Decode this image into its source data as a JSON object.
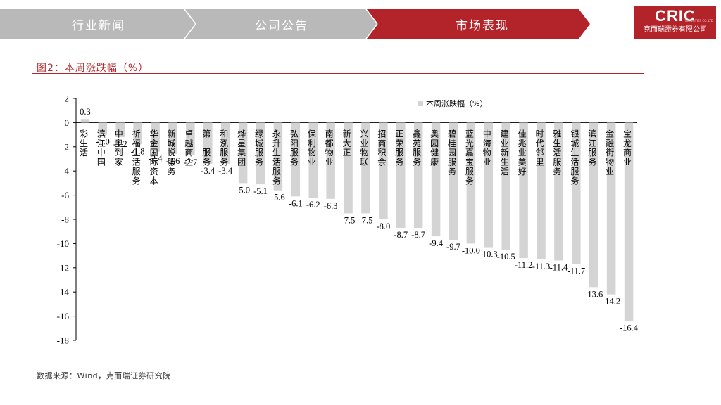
{
  "nav": {
    "tabs": [
      {
        "label": "行业新闻",
        "active": false
      },
      {
        "label": "公司公告",
        "active": false
      },
      {
        "label": "市场表现",
        "active": true
      }
    ]
  },
  "logo": {
    "main": "CRIC",
    "sub": "克而瑞證券有限公司",
    "tiny": "SECURITIES CO. LTD"
  },
  "colors": {
    "accent": "#b3242a",
    "tab_inactive": "#b9b9b9",
    "bar": "#d4d4d4"
  },
  "figure_title": "图2：本周涨跌幅（%）",
  "source": "数据来源：Wind，克而瑞证券研究院",
  "chart_data": {
    "type": "bar",
    "title": "",
    "xlabel": "",
    "ylabel": "",
    "ylim": [
      -18,
      2
    ],
    "yticks": [
      2,
      0,
      -2,
      -4,
      -6,
      -8,
      -10,
      -12,
      -14,
      -16,
      -18
    ],
    "grid": false,
    "legend": {
      "position": "top-right",
      "entries": [
        "本周涨跌幅（%）"
      ]
    },
    "categories": [
      "彩生活",
      "滨江中国",
      "中奥到家",
      "祈福生活服务",
      "华金国际资本",
      "新城悦服务",
      "卓越商企",
      "第一服务",
      "和泓服务",
      "烨星集团",
      "绿城服务",
      "永升生活服务",
      "弘阳服务",
      "保利物业",
      "南都物业",
      "新大正",
      "兴业物联",
      "招商积余",
      "正荣服务",
      "鑫苑服务",
      "奥园健康",
      "碧桂园服务",
      "蓝光嘉宝服务",
      "中海物业",
      "建业新生活",
      "佳兆业美好",
      "时代邻里",
      "雅生活服务",
      "银城生活服务",
      "滨江服务",
      "金融街物业",
      "宝龙商业"
    ],
    "series": [
      {
        "name": "本周涨跌幅（%）",
        "values": [
          0.3,
          -1.0,
          -1.2,
          -1.8,
          -2.4,
          -2.6,
          -2.7,
          -3.4,
          -3.4,
          -5.0,
          -5.1,
          -5.6,
          -6.1,
          -6.2,
          -6.3,
          -7.5,
          -7.5,
          -8.0,
          -8.7,
          -8.7,
          -9.4,
          -9.7,
          -10.0,
          -10.3,
          -10.5,
          -11.2,
          -11.3,
          -11.4,
          -11.7,
          -13.6,
          -14.2,
          -16.4
        ]
      }
    ]
  }
}
